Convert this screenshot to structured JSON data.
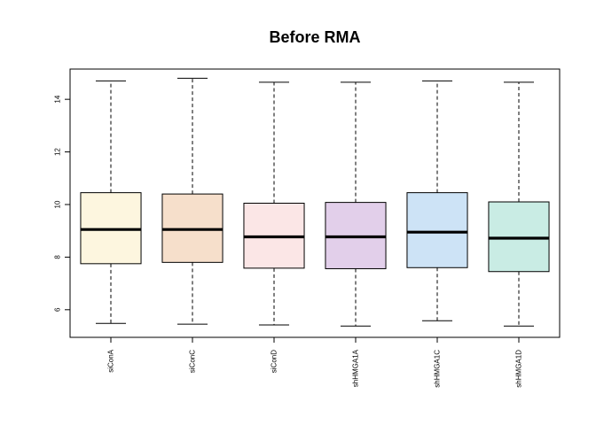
{
  "chart_data": {
    "type": "boxplot",
    "title": "Before RMA",
    "xlabel": "",
    "ylabel": "",
    "ylim": [
      4.95,
      15.15
    ],
    "yticks": [
      6,
      8,
      10,
      12,
      14
    ],
    "grid": false,
    "legend": "none",
    "categories": [
      "siConA",
      "siConC",
      "siConD",
      "shHMGA1A",
      "shHMGA1C",
      "shHMGA1D"
    ],
    "boxes": [
      {
        "label": "siConA",
        "min": 5.48,
        "q1": 7.75,
        "median": 9.05,
        "q3": 10.45,
        "max": 14.7,
        "color": "#fdf6df"
      },
      {
        "label": "siConC",
        "min": 5.45,
        "q1": 7.8,
        "median": 9.05,
        "q3": 10.4,
        "max": 14.8,
        "color": "#f6dfcb"
      },
      {
        "label": "siConD",
        "min": 5.42,
        "q1": 7.58,
        "median": 8.77,
        "q3": 10.05,
        "max": 14.65,
        "color": "#fbe6e6"
      },
      {
        "label": "shHMGA1A",
        "min": 5.38,
        "q1": 7.56,
        "median": 8.77,
        "q3": 10.08,
        "max": 14.65,
        "color": "#e2cfea"
      },
      {
        "label": "shHMGA1C",
        "min": 5.58,
        "q1": 7.6,
        "median": 8.95,
        "q3": 10.45,
        "max": 14.7,
        "color": "#cde3f6"
      },
      {
        "label": "shHMGA1D",
        "min": 5.38,
        "q1": 7.45,
        "median": 8.72,
        "q3": 10.1,
        "max": 14.65,
        "color": "#c9ece4"
      }
    ]
  }
}
